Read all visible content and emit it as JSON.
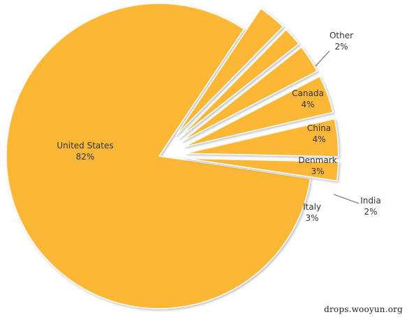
{
  "chart_data": {
    "type": "pie",
    "slices": [
      {
        "label": "United States",
        "value_label": "82%",
        "value": 82
      },
      {
        "label": "Italy",
        "value_label": "3%",
        "value": 3
      },
      {
        "label": "India",
        "value_label": "2%",
        "value": 2
      },
      {
        "label": "Denmark",
        "value_label": "3%",
        "value": 3
      },
      {
        "label": "China",
        "value_label": "4%",
        "value": 4
      },
      {
        "label": "Canada",
        "value_label": "4%",
        "value": 4
      },
      {
        "label": "Other",
        "value_label": "2%",
        "value": 2
      }
    ],
    "colors": {
      "slice_fill": "#FBB734",
      "slice_stroke": "#FFFFFF",
      "leader_line": "#666666",
      "label_text": "#333333"
    }
  },
  "watermark": "drops.wooyun.org"
}
